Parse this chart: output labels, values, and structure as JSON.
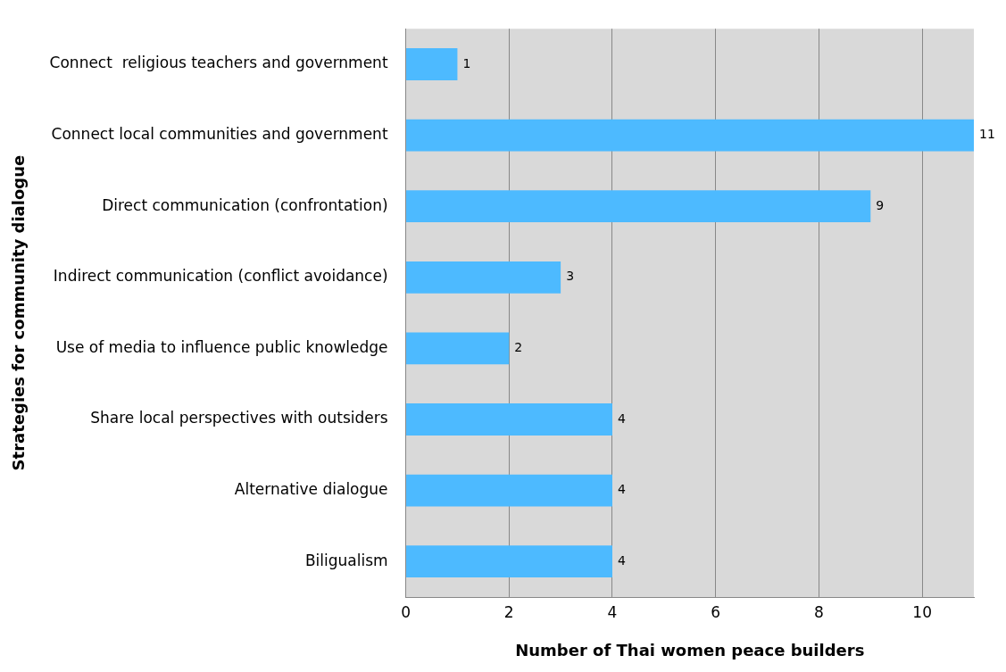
{
  "chart_data": {
    "type": "bar",
    "orientation": "horizontal",
    "xlabel": "Number of Thai women peace builders",
    "ylabel": "Strategies for community dialogue",
    "categories": [
      "Connect  religious teachers and government",
      "Connect local communities and government",
      "Direct communication (confrontation)",
      "Indirect communication (conflict avoidance)",
      "Use of media to influence public knowledge",
      "Share local perspectives with outsiders",
      "Alternative dialogue",
      "Biligualism"
    ],
    "values": [
      1,
      11,
      9,
      3,
      2,
      4,
      4,
      4
    ],
    "color": "#4dbaff",
    "xlim": [
      0,
      11
    ],
    "xticks": [
      0,
      2,
      4,
      6,
      8,
      10
    ],
    "grid": "x",
    "data_labels": true,
    "legend": false
  }
}
